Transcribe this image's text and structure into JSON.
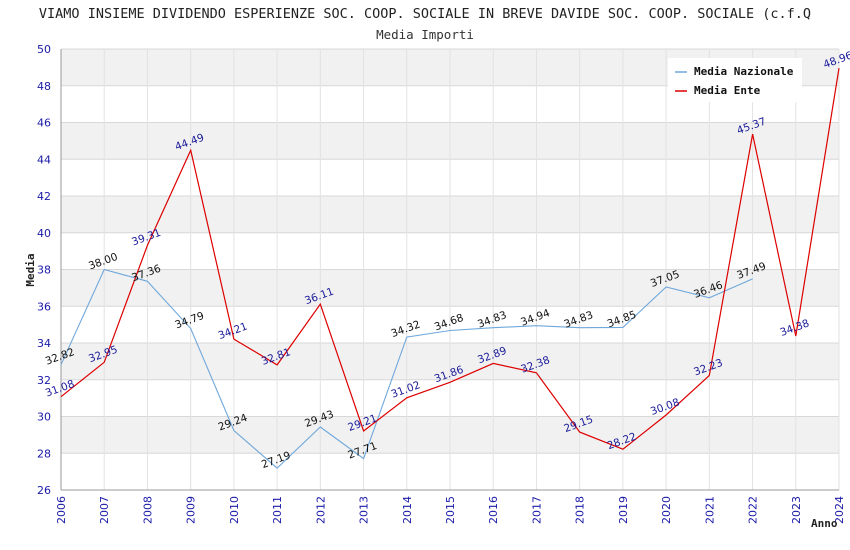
{
  "chart_data": {
    "type": "line",
    "title": "VIAMO INSIEME DIVIDENDO ESPERIENZE SOC. COOP. SOCIALE IN BREVE DAVIDE SOC. COOP. SOCIALE (c.f.Q",
    "subtitle": "Media Importi",
    "xlabel": "Anno",
    "ylabel": "Media",
    "ylim": [
      26,
      50
    ],
    "y_ticks": [
      26,
      28,
      30,
      32,
      34,
      36,
      38,
      40,
      42,
      44,
      46,
      48,
      50
    ],
    "categories": [
      "2006",
      "2007",
      "2008",
      "2009",
      "2010",
      "2011",
      "2012",
      "2013",
      "2014",
      "2015",
      "2016",
      "2017",
      "2018",
      "2019",
      "2020",
      "2021",
      "2022",
      "2023",
      "2024"
    ],
    "series": [
      {
        "name": "Media Nazionale",
        "color": "#6fa8dc",
        "values": [
          32.82,
          38.0,
          37.36,
          34.79,
          29.24,
          27.19,
          29.43,
          27.71,
          34.32,
          34.68,
          34.83,
          34.94,
          34.83,
          34.85,
          37.05,
          36.46,
          37.49,
          null,
          null
        ],
        "labels": [
          "32.82",
          "38.00",
          "37.36",
          "34.79",
          "29.24",
          "27.19",
          "29.43",
          "27.71",
          "34.32",
          "34.68",
          "34.83",
          "34.94",
          "34.83",
          "34.85",
          "37.05",
          "36.46",
          "37.49",
          "",
          ""
        ]
      },
      {
        "name": "Media Ente",
        "color": "#dd0000",
        "values": [
          31.08,
          32.95,
          39.31,
          44.49,
          34.21,
          32.81,
          36.11,
          29.21,
          31.02,
          31.86,
          32.89,
          32.38,
          29.15,
          28.22,
          30.08,
          32.23,
          45.37,
          34.38,
          48.96
        ],
        "labels": [
          "31.08",
          "32.95",
          "39.31",
          "44.49",
          "34.21",
          "32.81",
          "36.11",
          "29.21",
          "31.02",
          "31.86",
          "32.89",
          "32.38",
          "29.15",
          "28.22",
          "30.08",
          "32.23",
          "45.37",
          "34.38",
          "48.96"
        ]
      }
    ],
    "grid": true,
    "legend_position": "top-right"
  }
}
